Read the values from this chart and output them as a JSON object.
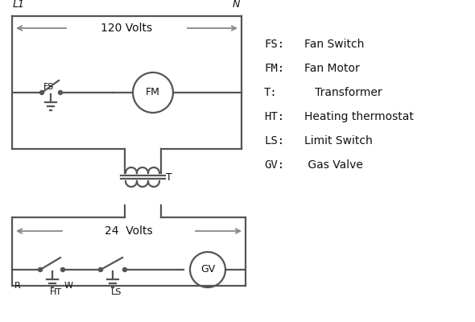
{
  "bg_color": "#ffffff",
  "line_color": "#555555",
  "text_color": "#111111",
  "arrow_color": "#888888",
  "figsize": [
    5.9,
    4.0
  ],
  "dpi": 100,
  "legend_items": [
    [
      "FS:",
      "Fan Switch"
    ],
    [
      "FM:",
      "Fan Motor"
    ],
    [
      "T:",
      "   Transformer"
    ],
    [
      "HT:",
      "Heating thermostat"
    ],
    [
      "LS:",
      "Limit Switch"
    ],
    [
      "GV:",
      " Gas Valve"
    ]
  ]
}
